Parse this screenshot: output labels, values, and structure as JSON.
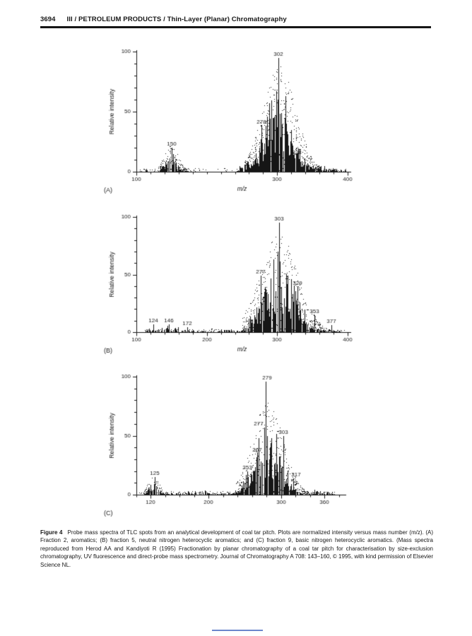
{
  "page": {
    "number": "3694",
    "running_title": "III / PETROLEUM PRODUCTS / Thin-Layer (Planar) Chromatography"
  },
  "figure": {
    "caption_label": "Figure 4",
    "caption_text": "Probe mass spectra of TLC spots from an analytical development of coal tar pitch. Plots are normalized intensity versus mass number (m/z). (A) Fraction 2, aromatics; (B) fraction 5, neutral nitrogen heterocyclic aromatics; and (C) fraction 9, basic nitrogen heterocyclic aromatics. (Mass spectra reproduced from Herod AA and Kandiyoti R (1995) Fractionation by planar chromatography of a coal tar pitch for characterisation by size-exclusion chromatography, UV fluorescence and direct-probe mass spectrometry. Journal of Chromatography A 708: 143–160, © 1995, with kind permission of Elsevier Science NL."
  },
  "colors": {
    "ink": "#161616",
    "footer_mark": "#6b86cc"
  },
  "chart_data": [
    {
      "type": "bar",
      "subtype": "mass-spectrum",
      "panel_label": "(A)",
      "title": "",
      "ylabel": "Relative intensity",
      "xlabel": "m/z",
      "xlim": [
        100,
        400
      ],
      "ylim": [
        0,
        100
      ],
      "xticks": [
        100,
        300,
        400
      ],
      "yticks": [
        0,
        50,
        100
      ],
      "x_minor_step": 20,
      "y_minor_step": 10,
      "labeled_peaks": [
        {
          "mz": 150,
          "intensity": 20,
          "label": "150"
        },
        {
          "mz": 278,
          "intensity": 38,
          "label": "278"
        },
        {
          "mz": 302,
          "intensity": 95,
          "label": "302"
        },
        {
          "mz": 328,
          "intensity": 13,
          "label": "328"
        }
      ],
      "noise_clusters": [
        {
          "from": 131,
          "to": 173,
          "center": 149,
          "sigma": 9,
          "count": 70,
          "max": 19
        },
        {
          "from": 240,
          "to": 263,
          "center": 256,
          "sigma": 9,
          "count": 30,
          "max": 10
        },
        {
          "from": 257,
          "to": 354,
          "center": 303,
          "sigma": 19,
          "count": 250,
          "max": 80
        },
        {
          "from": 352,
          "to": 400,
          "center": 352,
          "sigma": 28,
          "count": 60,
          "max": 7
        },
        {
          "from": 104,
          "to": 131,
          "center": 118,
          "sigma": 14,
          "count": 18,
          "max": 2
        }
      ],
      "speckle": [
        {
          "from": 131,
          "to": 173,
          "center": 149,
          "sigma": 10,
          "count": 130,
          "max": 23
        },
        {
          "from": 253,
          "to": 362,
          "center": 303,
          "sigma": 23,
          "count": 520,
          "max": 88
        },
        {
          "from": 104,
          "to": 399,
          "center": 250,
          "sigma": 300,
          "count": 150,
          "max": 3
        }
      ],
      "seed": 11
    },
    {
      "type": "bar",
      "subtype": "mass-spectrum",
      "panel_label": "(B)",
      "title": "",
      "ylabel": "Relative intensity",
      "xlabel": "m/z",
      "xlim": [
        100,
        400
      ],
      "ylim": [
        0,
        100
      ],
      "xticks": [
        100,
        200,
        300,
        400
      ],
      "yticks": [
        0,
        50,
        100
      ],
      "x_minor_step": 20,
      "y_minor_step": 10,
      "labeled_peaks": [
        {
          "mz": 124,
          "intensity": 7,
          "label": "124"
        },
        {
          "mz": 146,
          "intensity": 7,
          "label": "146"
        },
        {
          "mz": 172,
          "intensity": 4,
          "label": "172"
        },
        {
          "mz": 277,
          "intensity": 49,
          "label": "277"
        },
        {
          "mz": 303,
          "intensity": 95,
          "label": "303"
        },
        {
          "mz": 329,
          "intensity": 39,
          "label": "329"
        },
        {
          "mz": 353,
          "intensity": 15,
          "label": "353"
        },
        {
          "mz": 377,
          "intensity": 6,
          "label": "377"
        }
      ],
      "noise_clusters": [
        {
          "from": 113,
          "to": 190,
          "center": 138,
          "sigma": 28,
          "count": 60,
          "max": 6
        },
        {
          "from": 190,
          "to": 252,
          "center": 220,
          "sigma": 30,
          "count": 40,
          "max": 3
        },
        {
          "from": 252,
          "to": 396,
          "center": 302,
          "sigma": 23,
          "count": 270,
          "max": 76
        }
      ],
      "speckle": [
        {
          "from": 250,
          "to": 394,
          "center": 302,
          "sigma": 27,
          "count": 480,
          "max": 85
        },
        {
          "from": 106,
          "to": 396,
          "center": 250,
          "sigma": 300,
          "count": 140,
          "max": 3
        }
      ],
      "seed": 22
    },
    {
      "type": "bar",
      "subtype": "mass-spectrum",
      "panel_label": "(C)",
      "title": "",
      "ylabel": "Relative intensity",
      "xlabel": "",
      "xlim": [
        100,
        385
      ],
      "ylim": [
        0,
        100
      ],
      "xticks": [
        120,
        200,
        300,
        360
      ],
      "yticks": [
        0,
        50,
        100
      ],
      "x_minor_step": 20,
      "y_minor_step": 10,
      "labeled_peaks": [
        {
          "mz": 125,
          "intensity": 15,
          "label": "125"
        },
        {
          "mz": 253,
          "intensity": 20,
          "label": "253"
        },
        {
          "mz": 267,
          "intensity": 35,
          "label": "267"
        },
        {
          "mz": 277,
          "intensity": 57,
          "label": "277",
          "dx": -8
        },
        {
          "mz": 279,
          "intensity": 96,
          "label": "279",
          "dx": 2
        },
        {
          "mz": 303,
          "intensity": 50,
          "label": "303"
        },
        {
          "mz": 317,
          "intensity": 14,
          "label": "317",
          "dx": 4
        }
      ],
      "noise_clusters": [
        {
          "from": 110,
          "to": 142,
          "center": 124,
          "sigma": 7,
          "count": 45,
          "max": 14
        },
        {
          "from": 142,
          "to": 234,
          "center": 188,
          "sigma": 38,
          "count": 70,
          "max": 4
        },
        {
          "from": 234,
          "to": 344,
          "center": 281,
          "sigma": 18,
          "count": 250,
          "max": 72
        },
        {
          "from": 344,
          "to": 374,
          "center": 344,
          "sigma": 22,
          "count": 30,
          "max": 5
        }
      ],
      "speckle": [
        {
          "from": 236,
          "to": 350,
          "center": 281,
          "sigma": 21,
          "count": 430,
          "max": 80
        },
        {
          "from": 104,
          "to": 374,
          "center": 240,
          "sigma": 300,
          "count": 140,
          "max": 3
        },
        {
          "from": 110,
          "to": 142,
          "center": 124,
          "sigma": 8,
          "count": 80,
          "max": 16
        }
      ],
      "seed": 33
    }
  ]
}
